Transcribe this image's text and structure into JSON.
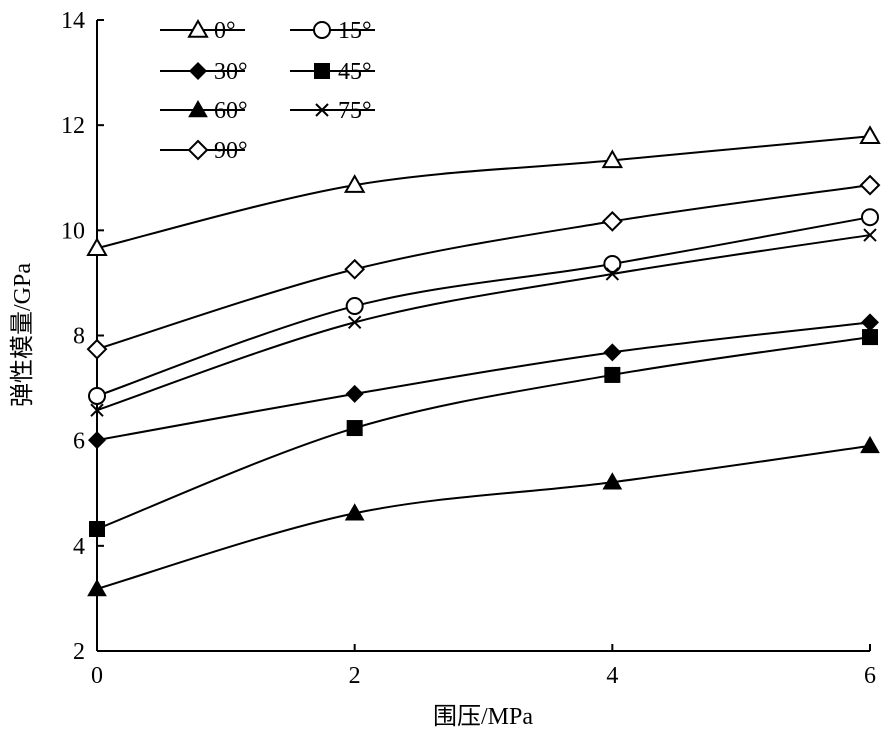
{
  "chart_data": {
    "type": "line",
    "title": "",
    "xlabel": "围压/MPa",
    "ylabel": "弹性模量/GPa",
    "xlim": [
      0,
      6
    ],
    "ylim": [
      2,
      14
    ],
    "xticks": [
      "0",
      "2",
      "4",
      "6"
    ],
    "yticks": [
      "2",
      "4",
      "6",
      "8",
      "10",
      "12",
      "14"
    ],
    "grid": false,
    "legend_position": "top-left",
    "x": [
      0,
      2,
      4,
      6
    ],
    "series": [
      {
        "name": "0°",
        "marker": "triangle-open",
        "values": [
          9.66,
          10.86,
          11.33,
          11.79
        ]
      },
      {
        "name": "15°",
        "marker": "circle-open",
        "values": [
          6.85,
          8.56,
          9.36,
          10.25
        ]
      },
      {
        "name": "30°",
        "marker": "diamond-filled",
        "values": [
          6.01,
          6.89,
          7.68,
          8.25
        ]
      },
      {
        "name": "45°",
        "marker": "square-filled",
        "values": [
          4.32,
          6.24,
          7.25,
          7.97
        ]
      },
      {
        "name": "60°",
        "marker": "triangle-filled",
        "values": [
          3.18,
          4.62,
          5.21,
          5.9
        ]
      },
      {
        "name": "75°",
        "marker": "x",
        "values": [
          6.58,
          8.25,
          9.17,
          9.91
        ]
      },
      {
        "name": "90°",
        "marker": "diamond-open",
        "values": [
          7.74,
          9.26,
          10.17,
          10.86
        ]
      }
    ]
  }
}
